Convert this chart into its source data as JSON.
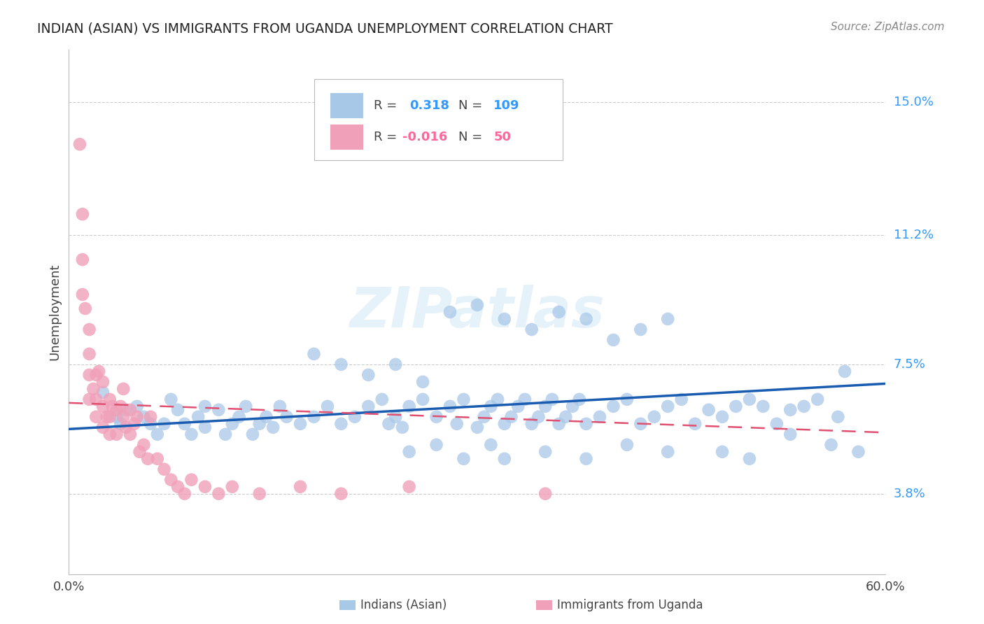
{
  "title": "INDIAN (ASIAN) VS IMMIGRANTS FROM UGANDA UNEMPLOYMENT CORRELATION CHART",
  "source": "Source: ZipAtlas.com",
  "ylabel": "Unemployment",
  "yticks": [
    0.038,
    0.075,
    0.112,
    0.15
  ],
  "ytick_labels": [
    "3.8%",
    "7.5%",
    "11.2%",
    "15.0%"
  ],
  "xmin": 0.0,
  "xmax": 0.6,
  "ymin": 0.015,
  "ymax": 0.165,
  "legend_label1": "Indians (Asian)",
  "legend_label2": "Immigrants from Uganda",
  "blue_color": "#a8c8e8",
  "pink_color": "#f0a0b8",
  "blue_line_color": "#1a5cb0",
  "pink_line_color": "#e05070",
  "watermark": "ZIPatlas",
  "blue_line_y_start": 0.0565,
  "blue_line_y_end": 0.0695,
  "pink_line_y_start": 0.064,
  "pink_line_y_end": 0.0555,
  "blue_scatter_x": [
    0.025,
    0.035,
    0.038,
    0.042,
    0.05,
    0.055,
    0.06,
    0.065,
    0.07,
    0.075,
    0.08,
    0.085,
    0.09,
    0.095,
    0.1,
    0.1,
    0.11,
    0.115,
    0.12,
    0.125,
    0.13,
    0.135,
    0.14,
    0.145,
    0.15,
    0.155,
    0.16,
    0.17,
    0.18,
    0.19,
    0.2,
    0.21,
    0.22,
    0.23,
    0.235,
    0.24,
    0.245,
    0.25,
    0.26,
    0.27,
    0.28,
    0.285,
    0.29,
    0.3,
    0.305,
    0.31,
    0.315,
    0.32,
    0.325,
    0.33,
    0.335,
    0.34,
    0.345,
    0.35,
    0.355,
    0.36,
    0.365,
    0.37,
    0.375,
    0.38,
    0.39,
    0.4,
    0.41,
    0.42,
    0.43,
    0.44,
    0.45,
    0.46,
    0.47,
    0.48,
    0.49,
    0.5,
    0.51,
    0.52,
    0.53,
    0.54,
    0.55,
    0.565,
    0.57,
    0.28,
    0.3,
    0.32,
    0.34,
    0.36,
    0.38,
    0.4,
    0.42,
    0.44,
    0.22,
    0.24,
    0.26,
    0.2,
    0.18,
    0.32,
    0.35,
    0.38,
    0.41,
    0.44,
    0.25,
    0.27,
    0.29,
    0.31,
    0.48,
    0.5,
    0.53,
    0.56,
    0.58
  ],
  "blue_scatter_y": [
    0.067,
    0.06,
    0.058,
    0.062,
    0.063,
    0.06,
    0.058,
    0.055,
    0.058,
    0.065,
    0.062,
    0.058,
    0.055,
    0.06,
    0.057,
    0.063,
    0.062,
    0.055,
    0.058,
    0.06,
    0.063,
    0.055,
    0.058,
    0.06,
    0.057,
    0.063,
    0.06,
    0.058,
    0.06,
    0.063,
    0.058,
    0.06,
    0.063,
    0.065,
    0.058,
    0.06,
    0.057,
    0.063,
    0.065,
    0.06,
    0.063,
    0.058,
    0.065,
    0.057,
    0.06,
    0.063,
    0.065,
    0.058,
    0.06,
    0.063,
    0.065,
    0.058,
    0.06,
    0.063,
    0.065,
    0.058,
    0.06,
    0.063,
    0.065,
    0.058,
    0.06,
    0.063,
    0.065,
    0.058,
    0.06,
    0.063,
    0.065,
    0.058,
    0.062,
    0.06,
    0.063,
    0.065,
    0.063,
    0.058,
    0.062,
    0.063,
    0.065,
    0.06,
    0.073,
    0.09,
    0.092,
    0.088,
    0.085,
    0.09,
    0.088,
    0.082,
    0.085,
    0.088,
    0.072,
    0.075,
    0.07,
    0.075,
    0.078,
    0.048,
    0.05,
    0.048,
    0.052,
    0.05,
    0.05,
    0.052,
    0.048,
    0.052,
    0.05,
    0.048,
    0.055,
    0.052,
    0.05
  ],
  "pink_scatter_x": [
    0.008,
    0.01,
    0.01,
    0.01,
    0.012,
    0.015,
    0.015,
    0.015,
    0.015,
    0.018,
    0.02,
    0.02,
    0.02,
    0.022,
    0.025,
    0.025,
    0.025,
    0.028,
    0.03,
    0.03,
    0.03,
    0.032,
    0.035,
    0.035,
    0.038,
    0.04,
    0.04,
    0.042,
    0.045,
    0.045,
    0.048,
    0.05,
    0.052,
    0.055,
    0.058,
    0.06,
    0.065,
    0.07,
    0.075,
    0.08,
    0.085,
    0.09,
    0.1,
    0.11,
    0.12,
    0.14,
    0.17,
    0.2,
    0.25,
    0.35
  ],
  "pink_scatter_y": [
    0.138,
    0.118,
    0.105,
    0.095,
    0.091,
    0.085,
    0.078,
    0.072,
    0.065,
    0.068,
    0.072,
    0.065,
    0.06,
    0.073,
    0.07,
    0.063,
    0.057,
    0.06,
    0.065,
    0.06,
    0.055,
    0.063,
    0.062,
    0.055,
    0.063,
    0.068,
    0.06,
    0.057,
    0.062,
    0.055,
    0.058,
    0.06,
    0.05,
    0.052,
    0.048,
    0.06,
    0.048,
    0.045,
    0.042,
    0.04,
    0.038,
    0.042,
    0.04,
    0.038,
    0.04,
    0.038,
    0.04,
    0.038,
    0.04,
    0.038
  ]
}
